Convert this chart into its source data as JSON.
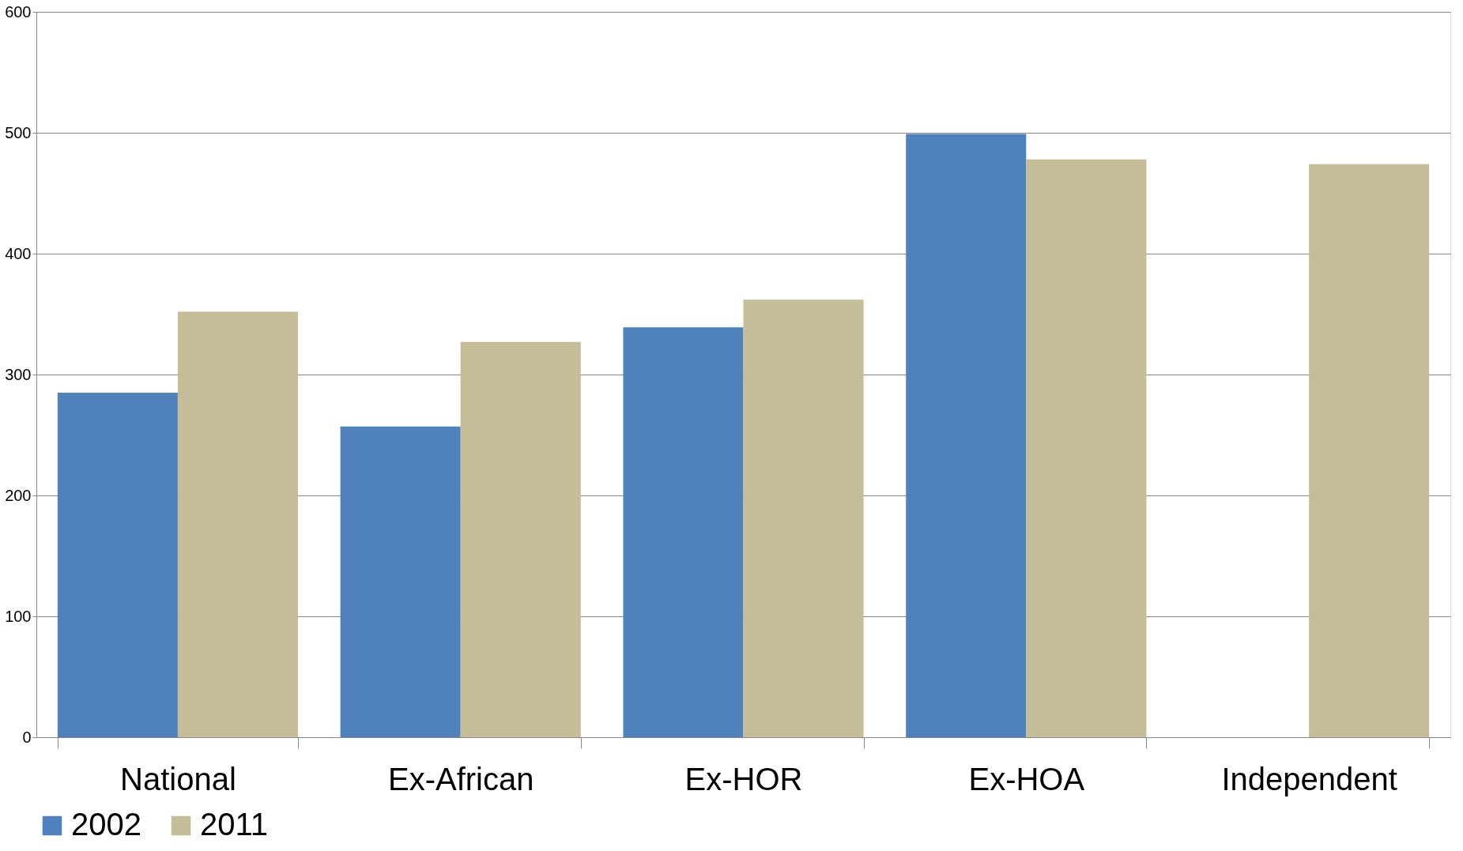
{
  "chart_data": {
    "type": "bar",
    "categories": [
      "National",
      "Ex-African",
      "Ex-HOR",
      "Ex-HOA",
      "Independent"
    ],
    "series": [
      {
        "name": "2002",
        "color": "#4f81bd",
        "values": [
          285,
          257,
          339,
          499,
          null
        ]
      },
      {
        "name": "2011",
        "color": "#c4bd97",
        "values": [
          352,
          327,
          362,
          478,
          474
        ]
      }
    ],
    "ylim": [
      0,
      600
    ],
    "yticks": [
      0,
      100,
      200,
      300,
      400,
      500,
      600
    ],
    "grid": "y",
    "legend": "bottom"
  }
}
